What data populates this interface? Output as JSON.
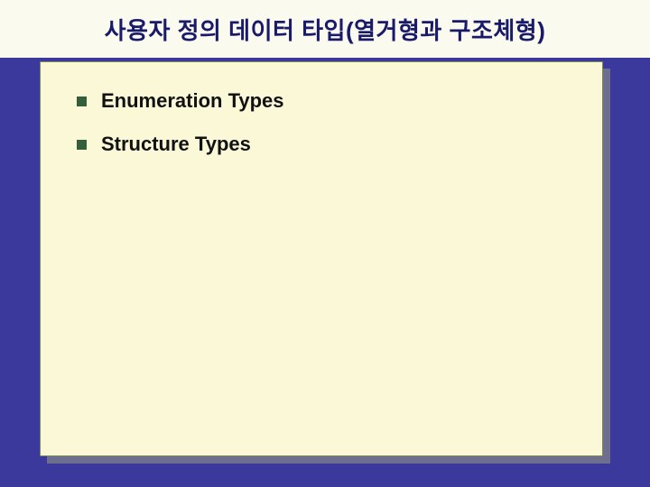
{
  "colors": {
    "slide_bg": "#3b3a9c",
    "title_band_bg": "#fafaef",
    "title_text": "#1a1a6a",
    "panel_bg": "#fbf8d8",
    "panel_shadow": "#6e6e8f",
    "bullet": "#355e3b",
    "item_text": "#111111"
  },
  "title": "사용자 정의 데이터 타입(열거형과 구조체형)",
  "items": [
    {
      "label": "Enumeration Types"
    },
    {
      "label": "Structure Types"
    }
  ]
}
